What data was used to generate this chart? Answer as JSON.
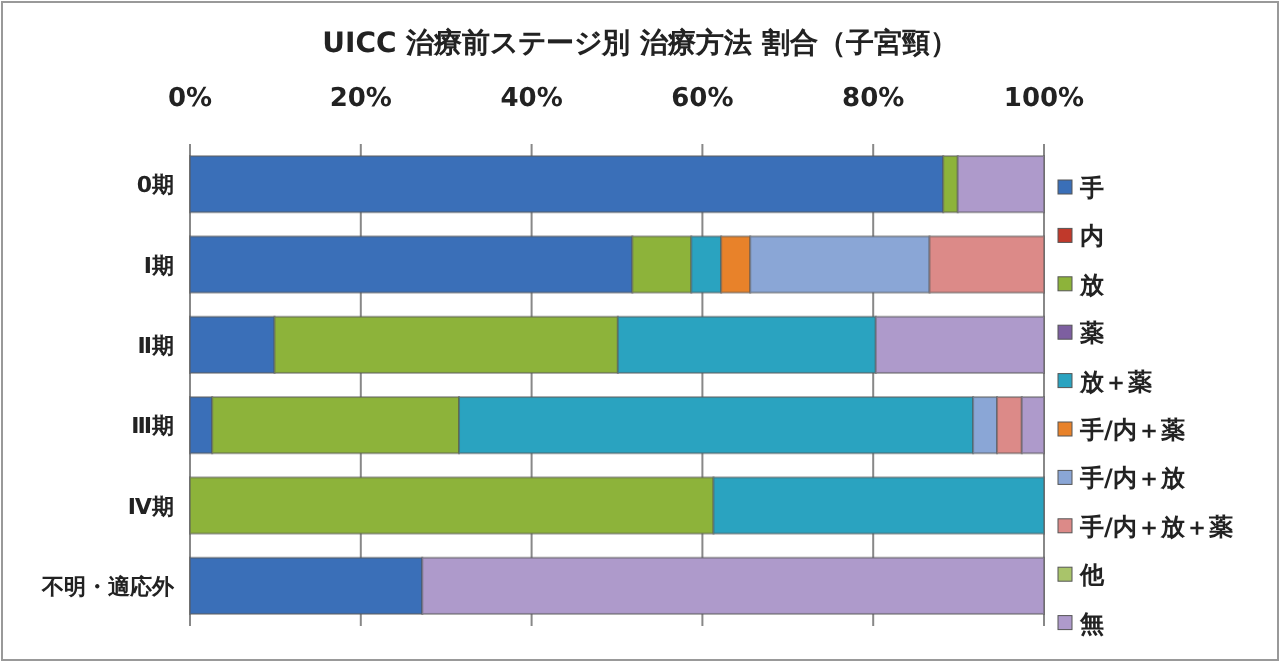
{
  "chart_data": {
    "type": "bar",
    "title": "UICC 治療前ステージ別  治療方法 割合（子宮頸）",
    "orientation": "horizontal",
    "stacked": true,
    "grid": "x",
    "legend": "right",
    "categories": [
      "0期",
      "Ⅰ期",
      "Ⅱ期",
      "Ⅲ期",
      "Ⅳ期",
      "不明・適応外"
    ],
    "xlim": [
      0,
      100
    ],
    "xticks": [
      {
        "value": 0,
        "label": "0%"
      },
      {
        "value": 20,
        "label": "20%"
      },
      {
        "value": 40,
        "label": "40%"
      },
      {
        "value": 60,
        "label": "60%"
      },
      {
        "value": 80,
        "label": "80%"
      },
      {
        "value": 100,
        "label": "100%"
      }
    ],
    "series": [
      {
        "name": "手",
        "color": "#3a6fb8",
        "values": [
          88.2,
          51.8,
          9.9,
          2.6,
          null,
          27.2
        ]
      },
      {
        "name": "内",
        "color": "#c0392b",
        "values": [
          null,
          null,
          null,
          null,
          null,
          null
        ]
      },
      {
        "name": "放",
        "color": "#8db33a",
        "values": [
          1.7,
          6.9,
          40.2,
          28.9,
          61.3,
          null
        ]
      },
      {
        "name": "薬",
        "color": "#7d5fa0",
        "values": [
          null,
          null,
          null,
          null,
          null,
          null
        ]
      },
      {
        "name": "放＋薬",
        "color": "#2aa3c0",
        "values": [
          null,
          3.5,
          30.2,
          60.2,
          38.7,
          null
        ]
      },
      {
        "name": "手/内＋薬",
        "color": "#e8822a",
        "values": [
          null,
          3.4,
          null,
          null,
          null,
          null
        ]
      },
      {
        "name": "手/内＋放",
        "color": "#8aa6d6",
        "values": [
          null,
          21.0,
          null,
          2.8,
          null,
          null
        ]
      },
      {
        "name": "手/内＋放＋薬",
        "color": "#dc8a88",
        "values": [
          null,
          13.4,
          null,
          2.9,
          null,
          null
        ]
      },
      {
        "name": "他",
        "color": "#a9c46a",
        "values": [
          null,
          null,
          null,
          null,
          null,
          null
        ]
      },
      {
        "name": "無",
        "color": "#ae9acb",
        "values": [
          10.1,
          null,
          19.7,
          2.6,
          null,
          72.8
        ]
      }
    ]
  }
}
